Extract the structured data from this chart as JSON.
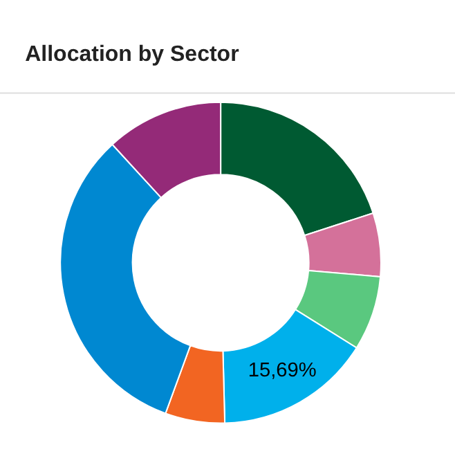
{
  "chart_data": {
    "type": "donut",
    "title": "Allocation by Sector",
    "categories": [
      null,
      null,
      null,
      null,
      null,
      null,
      null
    ],
    "values": [
      20.0,
      6.4,
      7.5,
      15.69,
      6.0,
      32.6,
      11.81
    ],
    "colors": [
      "#005a32",
      "#d4719a",
      "#5ac87f",
      "#00b0eb",
      "#f26522",
      "#0088d1",
      "#942a78"
    ],
    "value_labels": [
      null,
      null,
      null,
      "15,69%",
      null,
      null,
      null
    ],
    "legend": false
  }
}
